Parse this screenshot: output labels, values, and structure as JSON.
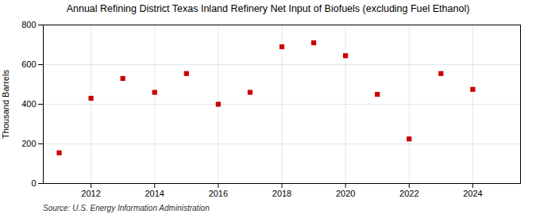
{
  "chart_data": {
    "type": "scatter",
    "title": "Annual Refining District Texas Inland Refinery Net Input of Biofuels (excluding Fuel Ethanol)",
    "ylabel": "Thousand Barrels",
    "source": "Source: U.S. Energy Information Administration",
    "x": [
      2011,
      2012,
      2013,
      2014,
      2015,
      2016,
      2017,
      2018,
      2019,
      2020,
      2021,
      2022,
      2023,
      2024
    ],
    "values": [
      155,
      430,
      530,
      460,
      555,
      400,
      460,
      690,
      710,
      645,
      450,
      225,
      555,
      475
    ],
    "color": "#cc0000",
    "marker": "square",
    "xlim": [
      2010.5,
      2025.5
    ],
    "xticks": [
      2012,
      2014,
      2016,
      2018,
      2020,
      2022,
      2024
    ],
    "ylim": [
      0,
      800
    ],
    "yticks": [
      0,
      200,
      400,
      600,
      800
    ],
    "grid": true
  }
}
